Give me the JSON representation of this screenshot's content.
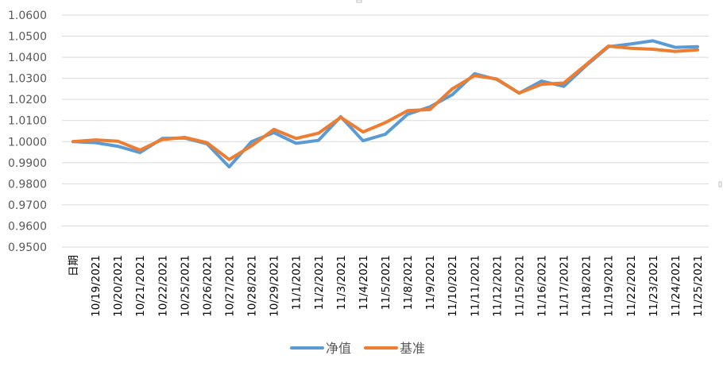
{
  "chart_data": {
    "type": "line",
    "title": "",
    "xlabel": "",
    "ylabel": "",
    "ylim": [
      0.95,
      1.06
    ],
    "y_ticks": [
      "0.9500",
      "0.9600",
      "0.9700",
      "0.9800",
      "0.9900",
      "1.0000",
      "1.0100",
      "1.0200",
      "1.0300",
      "1.0400",
      "1.0500",
      "1.0600"
    ],
    "categories": [
      "日期",
      "10/19/2021",
      "10/20/2021",
      "10/21/2021",
      "10/22/2021",
      "10/25/2021",
      "10/26/2021",
      "10/27/2021",
      "10/28/2021",
      "10/29/2021",
      "11/1/2021",
      "11/2/2021",
      "11/3/2021",
      "11/4/2021",
      "11/5/2021",
      "11/8/2021",
      "11/9/2021",
      "11/10/2021",
      "11/11/2021",
      "11/12/2021",
      "11/15/2021",
      "11/16/2021",
      "11/17/2021",
      "11/18/2021",
      "11/19/2021",
      "11/22/2021",
      "11/23/2021",
      "11/24/2021",
      "11/25/2021"
    ],
    "grid": true,
    "legend_position": "bottom",
    "series": [
      {
        "name": "净值",
        "color": "#5B9BD5",
        "values": [
          1.0,
          0.9995,
          0.9978,
          0.9948,
          1.0015,
          1.0017,
          0.999,
          0.988,
          1.0,
          1.0043,
          0.9992,
          1.0006,
          1.0118,
          1.0004,
          1.0035,
          1.013,
          1.0165,
          1.0222,
          1.0322,
          1.0295,
          1.023,
          1.0287,
          1.0262,
          1.036,
          1.045,
          1.0463,
          1.0478,
          1.0447,
          1.045
        ]
      },
      {
        "name": "基准",
        "color": "#ED7D31",
        "values": [
          1.0,
          1.0008,
          1.0002,
          0.996,
          1.001,
          1.002,
          0.9995,
          0.9915,
          0.998,
          1.0058,
          1.0015,
          1.004,
          1.0115,
          1.0046,
          1.009,
          1.0147,
          1.0152,
          1.025,
          1.0313,
          1.0297,
          1.023,
          1.0272,
          1.0278,
          1.0365,
          1.0453,
          1.0443,
          1.0438,
          1.0428,
          1.0435
        ]
      }
    ]
  }
}
